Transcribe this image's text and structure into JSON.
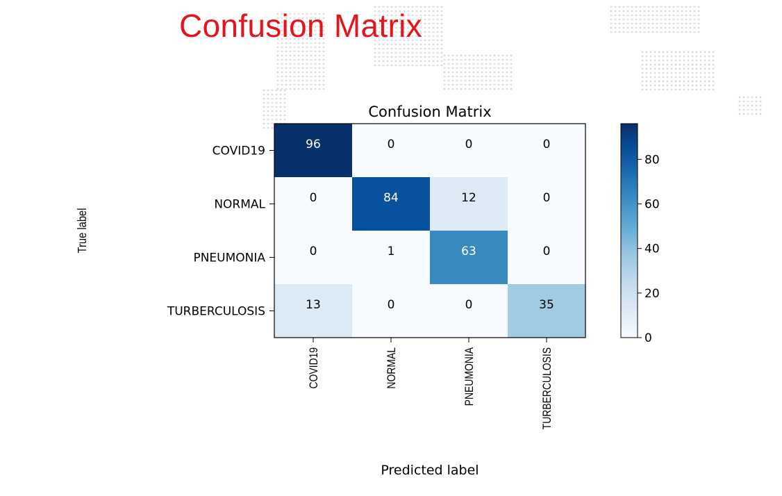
{
  "slide_title": "Confusion Matrix",
  "colors": {
    "title": "#e5141a",
    "cmap_low": "#f7fbff",
    "cmap_high": "#08306b"
  },
  "chart_data": {
    "type": "heatmap",
    "title": "Confusion Matrix",
    "xlabel": "Predicted label",
    "ylabel": "True label",
    "x_categories": [
      "COVID19",
      "NORMAL",
      "PNEUMONIA",
      "TURBERCULOSIS"
    ],
    "y_categories": [
      "COVID19",
      "NORMAL",
      "PNEUMONIA",
      "TURBERCULOSIS"
    ],
    "matrix": [
      [
        96,
        0,
        0,
        0
      ],
      [
        0,
        84,
        12,
        0
      ],
      [
        0,
        1,
        63,
        0
      ],
      [
        13,
        0,
        0,
        35
      ]
    ],
    "colorbar": {
      "min": 0,
      "max": 96,
      "ticks": [
        0,
        20,
        40,
        60,
        80
      ]
    },
    "colormap": "Blues",
    "grid": false
  }
}
